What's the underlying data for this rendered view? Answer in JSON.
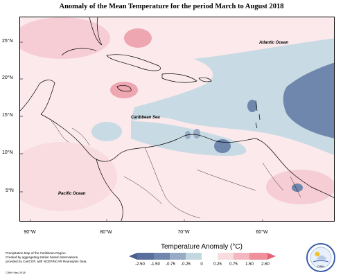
{
  "title": "Anomaly of the Mean Temperature for the period March to August 2018",
  "map": {
    "lat_labels": [
      "25°N",
      "20°N",
      "15°N",
      "10°N",
      "5°N"
    ],
    "lon_labels": [
      "90°W",
      "80°W",
      "70°W",
      "60°W"
    ],
    "regions": {
      "atlantic": "Atlantic Ocean",
      "caribbean": "Caribbean Sea",
      "pacific": "Pacific Ocean"
    }
  },
  "legend": {
    "title": "Temperature Anomaly (°C)",
    "ticks": [
      "-2.50",
      "-1.50",
      "-0.75",
      "-0.25",
      "0",
      "0.25",
      "0.75",
      "1.50",
      "2.50"
    ],
    "colors": [
      "#4a5f8e",
      "#6f86ad",
      "#97abc5",
      "#c3d7e1",
      "#ffffff",
      "#f9dce0",
      "#f4b7c0",
      "#ee8f9b",
      "#e46475"
    ]
  },
  "footnote": {
    "line1": "Precipitation Map of the Caribbean Region.",
    "line2": "Created by aggregating station based observations,",
    "line3": "provided by CariCOF, with NCEP/NCAR Reanalysis Data.",
    "credit": "CIMH Sep-2018"
  },
  "logo": {
    "text": "CIMH"
  }
}
